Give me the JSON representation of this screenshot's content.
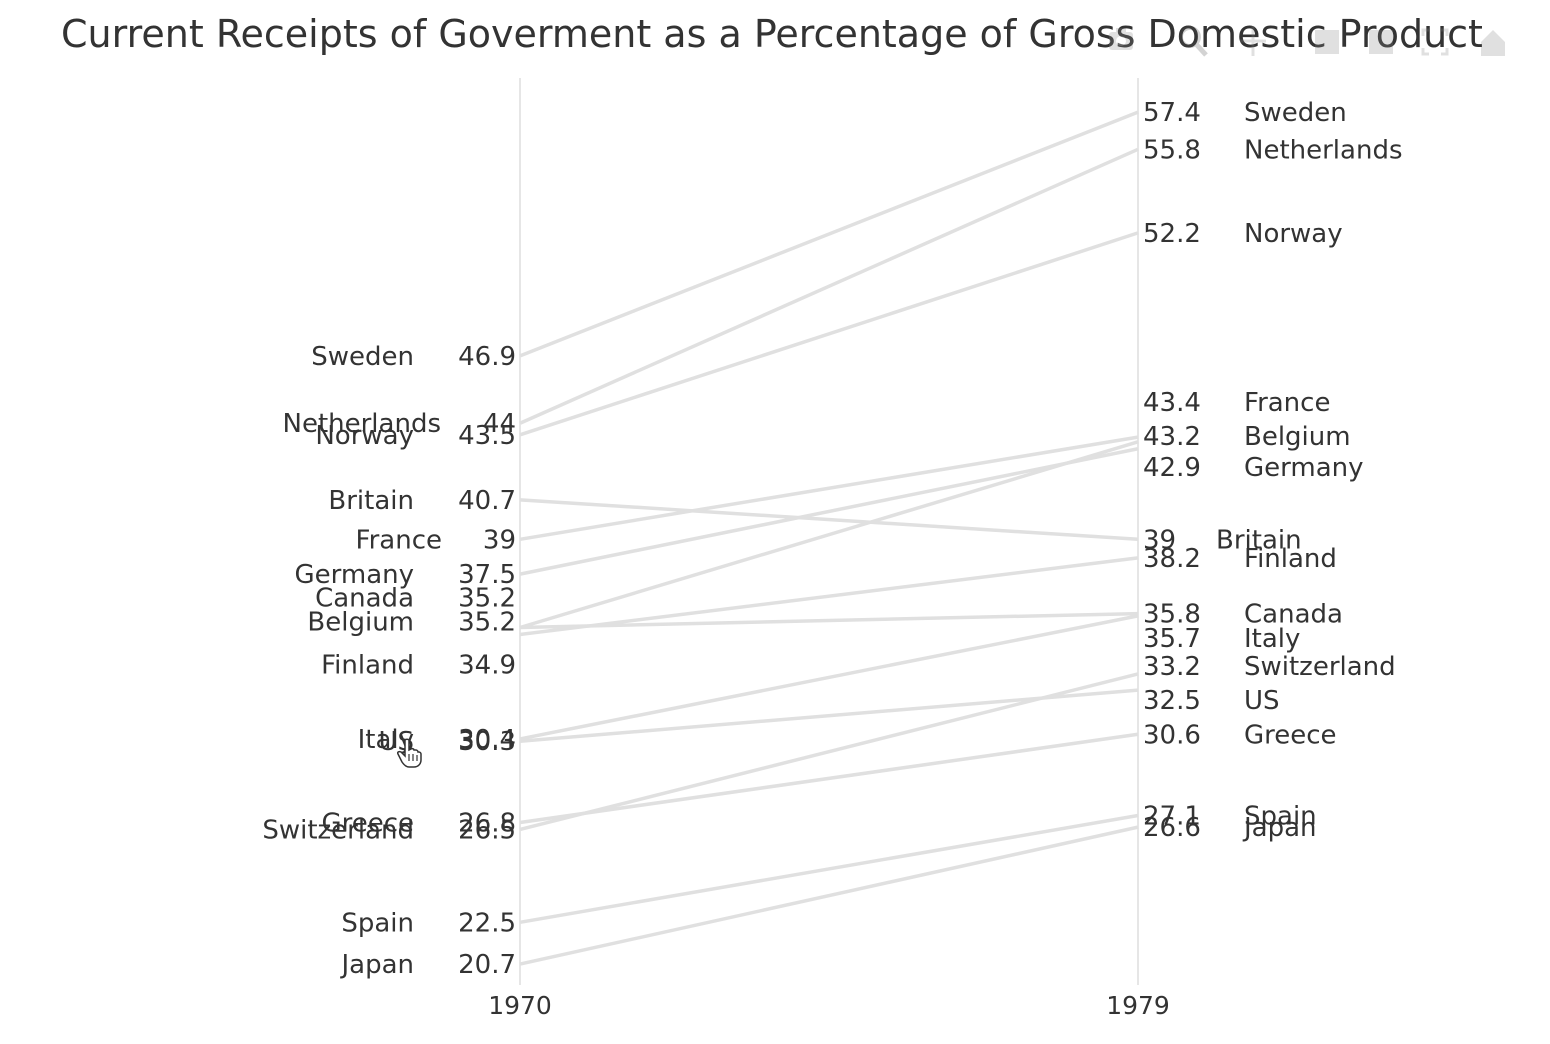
{
  "title": "Current Receipts of Goverment as a Percentage of Gross Domestic Product",
  "modebar": {
    "buttons": [
      "camera-icon",
      "zoom-icon",
      "pan-icon",
      "zoom-in-icon",
      "zoom-out-icon",
      "autoscale-icon",
      "home-icon"
    ]
  },
  "chart_data": {
    "type": "line",
    "chart_style": "slopegraph",
    "title": "Current Receipts of Goverment as a Percentage of Gross Domestic Product",
    "x_categories": [
      "1970",
      "1979"
    ],
    "line_color": "#e0e0e0",
    "axis_line_color": "#e6e6e6",
    "grid": false,
    "legend": "none",
    "series": [
      {
        "name": "Sweden",
        "v1970": 46.9,
        "v1979": 57.4,
        "label1970": "46.9",
        "label1979": "57.4"
      },
      {
        "name": "Netherlands",
        "v1970": 44,
        "v1979": 55.8,
        "label1970": "44",
        "label1979": "55.8"
      },
      {
        "name": "Norway",
        "v1970": 43.5,
        "v1979": 52.2,
        "label1970": "43.5",
        "label1979": "52.2"
      },
      {
        "name": "Britain",
        "v1970": 40.7,
        "v1979": 39,
        "label1970": "40.7",
        "label1979": "39"
      },
      {
        "name": "France",
        "v1970": 39,
        "v1979": 43.4,
        "label1970": "39",
        "label1979": "43.4"
      },
      {
        "name": "Germany",
        "v1970": 37.5,
        "v1979": 42.9,
        "label1970": "37.5",
        "label1979": "42.9"
      },
      {
        "name": "Canada",
        "v1970": 35.2,
        "v1979": 35.8,
        "label1970": "35.2",
        "label1979": "35.8"
      },
      {
        "name": "Belgium",
        "v1970": 35.2,
        "v1979": 43.2,
        "label1970": "35.2",
        "label1979": "43.2"
      },
      {
        "name": "Finland",
        "v1970": 34.9,
        "v1979": 38.2,
        "label1970": "34.9",
        "label1979": "38.2"
      },
      {
        "name": "Italy",
        "v1970": 30.4,
        "v1979": 35.7,
        "label1970": "30.4",
        "label1979": "35.7"
      },
      {
        "name": "US",
        "v1970": 30.3,
        "v1979": 32.5,
        "label1970": "30.3",
        "label1979": "32.5"
      },
      {
        "name": "Greece",
        "v1970": 26.8,
        "v1979": 30.6,
        "label1970": "26.8",
        "label1979": "30.6"
      },
      {
        "name": "Switzerland",
        "v1970": 26.5,
        "v1979": 33.2,
        "label1970": "26.5",
        "label1979": "33.2"
      },
      {
        "name": "Spain",
        "v1970": 22.5,
        "v1979": 27.1,
        "label1970": "22.5",
        "label1979": "27.1"
      },
      {
        "name": "Japan",
        "v1970": 20.7,
        "v1979": 26.6,
        "label1970": "20.7",
        "label1979": "26.6"
      }
    ]
  }
}
